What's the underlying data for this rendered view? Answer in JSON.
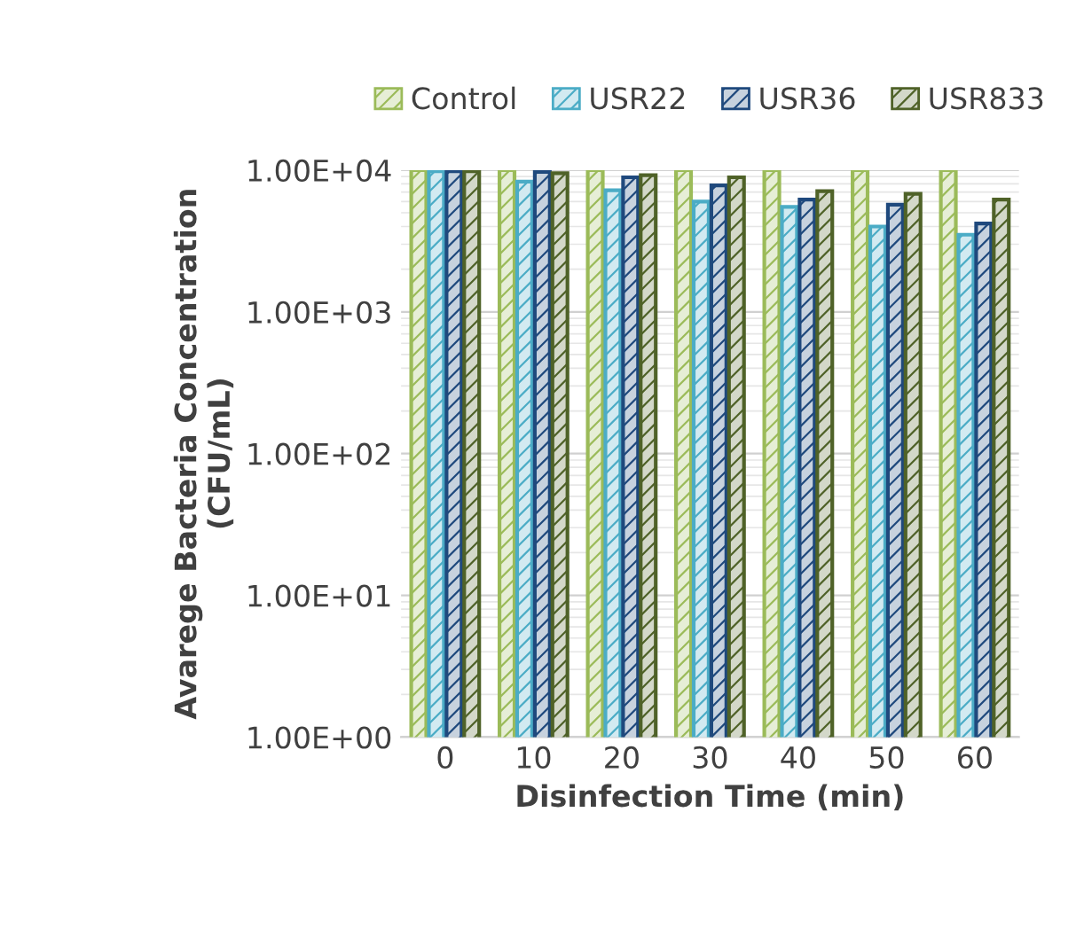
{
  "chart_data": {
    "type": "bar",
    "xlabel": "Disinfection Time (min)",
    "ylabel": "Avarege Bacteria Concentration\n(CFU/mL)",
    "categories": [
      "0",
      "10",
      "20",
      "30",
      "40",
      "50",
      "60"
    ],
    "series": [
      {
        "name": "Control",
        "color": "#9bbb59",
        "values": [
          10000,
          10000,
          10000,
          10000,
          10000,
          10000,
          10000
        ]
      },
      {
        "name": "USR22",
        "color": "#4bacc6",
        "values": [
          9800,
          8300,
          7200,
          6000,
          5500,
          4000,
          3500
        ]
      },
      {
        "name": "USR36",
        "color": "#1f497d",
        "values": [
          9800,
          9700,
          8900,
          7800,
          6200,
          5700,
          4200
        ]
      },
      {
        "name": "USR833",
        "color": "#4f6228",
        "values": [
          9800,
          9500,
          9200,
          8900,
          7100,
          6800,
          6200
        ]
      }
    ],
    "log": "y",
    "ylim": [
      1,
      10000
    ],
    "yticks": [
      {
        "value": 1,
        "label": "1.00E+00"
      },
      {
        "value": 10,
        "label": "1.00E+01"
      },
      {
        "value": 100,
        "label": "1.00E+02"
      },
      {
        "value": 1000,
        "label": "1.00E+03"
      },
      {
        "value": 10000,
        "label": "1.00E+04"
      }
    ],
    "grid": "y",
    "legend": "top"
  }
}
